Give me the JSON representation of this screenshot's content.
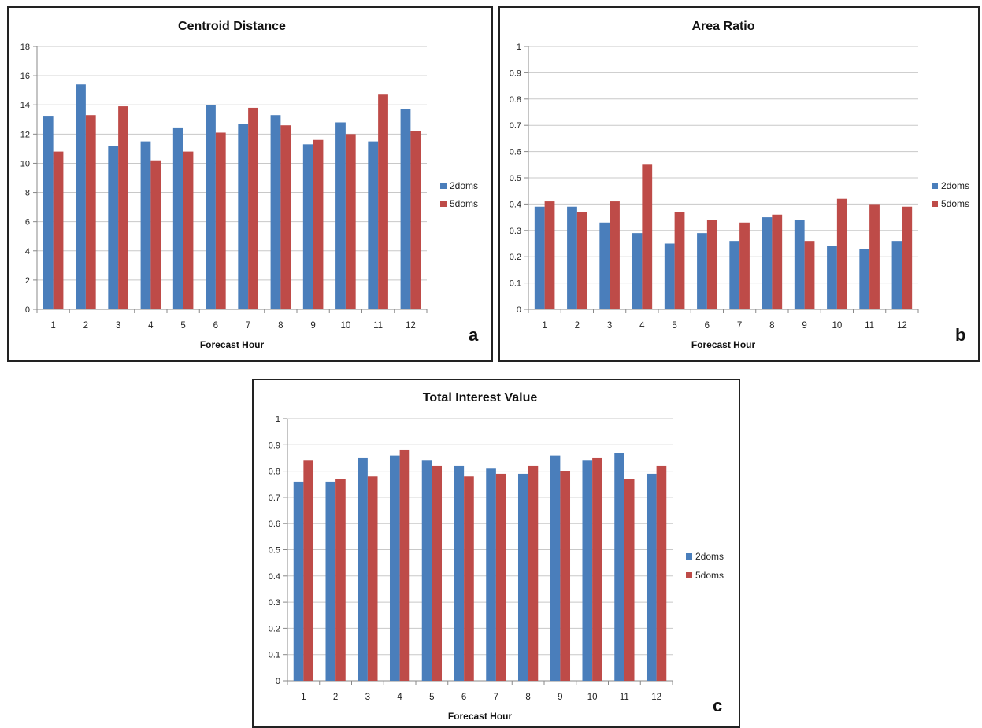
{
  "chart_data": [
    {
      "type": "bar",
      "panel_label": "a",
      "title": "Centroid Distance",
      "xlabel": "Forecast Hour",
      "ylabel": "",
      "categories": [
        "1",
        "2",
        "3",
        "4",
        "5",
        "6",
        "7",
        "8",
        "9",
        "10",
        "11",
        "12"
      ],
      "ylim": [
        0,
        18
      ],
      "yticks": [
        "0",
        "2",
        "4",
        "6",
        "8",
        "10",
        "12",
        "14",
        "16",
        "18"
      ],
      "grid": true,
      "legend_position": "right",
      "series": [
        {
          "name": "2doms",
          "color": "#4a7ebb",
          "values": [
            13.2,
            15.4,
            11.2,
            11.5,
            12.4,
            14.0,
            12.7,
            13.3,
            11.3,
            12.8,
            11.5,
            13.7
          ]
        },
        {
          "name": "5doms",
          "color": "#be4b48",
          "values": [
            10.8,
            13.3,
            13.9,
            10.2,
            10.8,
            12.1,
            13.8,
            12.6,
            11.6,
            12.0,
            14.7,
            12.2
          ]
        }
      ]
    },
    {
      "type": "bar",
      "panel_label": "b",
      "title": "Area Ratio",
      "xlabel": "Forecast Hour",
      "ylabel": "",
      "categories": [
        "1",
        "2",
        "3",
        "4",
        "5",
        "6",
        "7",
        "8",
        "9",
        "10",
        "11",
        "12"
      ],
      "ylim": [
        0,
        1
      ],
      "yticks": [
        "0",
        "0.1",
        "0.2",
        "0.3",
        "0.4",
        "0.5",
        "0.6",
        "0.7",
        "0.8",
        "0.9",
        "1"
      ],
      "grid": true,
      "legend_position": "right",
      "series": [
        {
          "name": "2doms",
          "color": "#4a7ebb",
          "values": [
            0.39,
            0.39,
            0.33,
            0.29,
            0.25,
            0.29,
            0.26,
            0.35,
            0.34,
            0.24,
            0.23,
            0.26
          ]
        },
        {
          "name": "5doms",
          "color": "#be4b48",
          "values": [
            0.41,
            0.37,
            0.41,
            0.55,
            0.37,
            0.34,
            0.33,
            0.36,
            0.26,
            0.42,
            0.4,
            0.39
          ]
        }
      ]
    },
    {
      "type": "bar",
      "panel_label": "c",
      "title": "Total Interest Value",
      "xlabel": "Forecast Hour",
      "ylabel": "",
      "categories": [
        "1",
        "2",
        "3",
        "4",
        "5",
        "6",
        "7",
        "8",
        "9",
        "10",
        "11",
        "12"
      ],
      "ylim": [
        0,
        1
      ],
      "yticks": [
        "0",
        "0.1",
        "0.2",
        "0.3",
        "0.4",
        "0.5",
        "0.6",
        "0.7",
        "0.8",
        "0.9",
        "1"
      ],
      "grid": true,
      "legend_position": "right",
      "series": [
        {
          "name": "2doms",
          "color": "#4a7ebb",
          "values": [
            0.76,
            0.76,
            0.85,
            0.86,
            0.84,
            0.82,
            0.81,
            0.79,
            0.86,
            0.84,
            0.87,
            0.79
          ]
        },
        {
          "name": "5doms",
          "color": "#be4b48",
          "values": [
            0.84,
            0.77,
            0.78,
            0.88,
            0.82,
            0.78,
            0.79,
            0.82,
            0.8,
            0.85,
            0.77,
            0.82
          ]
        }
      ]
    }
  ]
}
